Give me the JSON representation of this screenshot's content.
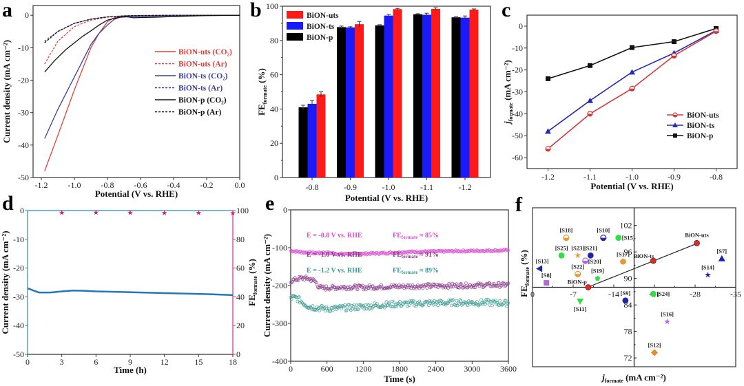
{
  "figure": {
    "panel_labels": [
      "a",
      "b",
      "c",
      "d",
      "e",
      "f"
    ]
  },
  "chart_data": [
    {
      "id": "a",
      "type": "line",
      "xlabel": "Potential (V vs. RHE)",
      "ylabel": "Current density (mA cm⁻²)",
      "xlim": [
        -1.25,
        0.0
      ],
      "ylim": [
        -50,
        3
      ],
      "xticks": [
        -1.2,
        -1.0,
        -0.8,
        -0.6,
        -0.4,
        -0.2,
        0.0
      ],
      "xtick_labels": [
        "-1.2",
        "-1.0",
        "-0.8",
        "-0.6",
        "-0.4",
        "-0.2",
        "0.0"
      ],
      "yticks": [
        0,
        -10,
        -20,
        -30,
        -40,
        -50
      ],
      "ytick_labels": [
        "0",
        "-10",
        "-20",
        "-30",
        "-40",
        "-50"
      ],
      "legend_position": "center-right",
      "series": [
        {
          "name": "BiON-uts (CO₂)",
          "color": "#e0403a",
          "dash": "solid",
          "x": [
            -1.18,
            -1.1,
            -1.0,
            -0.9,
            -0.85,
            -0.8,
            -0.76,
            -0.72,
            -0.7,
            -0.6,
            -0.4,
            -0.2,
            0.0
          ],
          "y": [
            -48,
            -37,
            -23,
            -10,
            -5.5,
            -2,
            -0.8,
            -0.3,
            -0.2,
            -0.1,
            -0.05,
            0,
            0
          ]
        },
        {
          "name": "BiON-uts (Ar)",
          "color": "#e0403a",
          "dash": "dashed",
          "x": [
            -1.18,
            -1.1,
            -1.0,
            -0.9,
            -0.8,
            -0.7,
            -0.6,
            -0.4,
            0.0
          ],
          "y": [
            -15,
            -8,
            -3.5,
            -1.5,
            -0.6,
            -0.2,
            -0.1,
            0,
            0
          ]
        },
        {
          "name": "BiON-ts (CO₂)",
          "color": "#3a3f9e",
          "dash": "solid",
          "x": [
            -1.18,
            -1.1,
            -1.0,
            -0.9,
            -0.85,
            -0.8,
            -0.76,
            -0.72,
            -0.68,
            -0.6,
            -0.4,
            -0.2,
            0.0
          ],
          "y": [
            -38,
            -29,
            -19,
            -9,
            -5.5,
            -3,
            -1.3,
            -0.5,
            -0.3,
            -0.5,
            -0.3,
            -0.1,
            0
          ]
        },
        {
          "name": "BiON-ts (Ar)",
          "color": "#3a3f9e",
          "dash": "dashed",
          "x": [
            -1.18,
            -1.1,
            -1.0,
            -0.9,
            -0.8,
            -0.7,
            -0.6,
            -0.4,
            0.0
          ],
          "y": [
            -8,
            -5,
            -2.5,
            -1.2,
            -0.5,
            -0.2,
            -0.1,
            0,
            0
          ]
        },
        {
          "name": "BiON-p (CO₂)",
          "color": "#111111",
          "dash": "solid",
          "x": [
            -1.18,
            -1.12,
            -1.05,
            -1.0,
            -0.95,
            -0.9,
            -0.85,
            -0.8,
            -0.76,
            -0.72,
            -0.68,
            -0.64,
            -0.6,
            -0.5,
            -0.4,
            -0.2,
            0.0
          ],
          "y": [
            -17.5,
            -14,
            -10.5,
            -8.5,
            -6.5,
            -4.8,
            -3,
            -1.5,
            -1,
            -0.6,
            -0.5,
            -0.8,
            -0.7,
            -0.6,
            -0.4,
            -0.1,
            0
          ]
        },
        {
          "name": "BiON-p (Ar)",
          "color": "#111111",
          "dash": "dashed",
          "x": [
            -1.18,
            -1.1,
            -1.0,
            -0.9,
            -0.8,
            -0.7,
            -0.6,
            -0.4,
            0.0
          ],
          "y": [
            -8.5,
            -5,
            -2.5,
            -1.2,
            -0.5,
            -0.2,
            -0.1,
            0,
            0
          ]
        }
      ]
    },
    {
      "id": "b",
      "type": "bar",
      "xlabel": "Potential (V vs. RHE)",
      "ylabel": "FE_formate (%)",
      "ylabel_main": "FE",
      "ylabel_sub": "formate",
      "ylabel_unit": " (%)",
      "categories": [
        "-0.8",
        "-0.9",
        "-1.0",
        "-1.1",
        "-1.2"
      ],
      "ylim": [
        0,
        100
      ],
      "yticks": [
        0,
        20,
        40,
        60,
        80,
        100
      ],
      "ytick_labels": [
        "0",
        "20",
        "40",
        "60",
        "80",
        "100"
      ],
      "legend_position": "top-left",
      "series": [
        {
          "name": "BiON-p",
          "color": "#000000",
          "values": [
            41,
            87.8,
            88.8,
            95.3,
            93.5
          ],
          "errors": [
            1.2,
            0.6,
            0.4,
            0.3,
            0.4
          ]
        },
        {
          "name": "BiON-ts",
          "color": "#1a1aff",
          "values": [
            43,
            87.6,
            94.5,
            95.0,
            93.3
          ],
          "errors": [
            2.0,
            0.4,
            0.7,
            0.9,
            1.0
          ]
        },
        {
          "name": "BiON-uts",
          "color": "#ff1a1a",
          "values": [
            48.5,
            89.5,
            98.3,
            98.4,
            98.0
          ],
          "errors": [
            1.5,
            1.6,
            0.4,
            0.7,
            0.4
          ]
        }
      ],
      "legend_order": [
        "BiON-uts",
        "BiON-ts",
        "BiON-p"
      ]
    },
    {
      "id": "c",
      "type": "line",
      "xlabel": "Potential (V vs. RHE)",
      "ylabel": "j_formate (mA cm⁻²)",
      "ylabel_main": "j",
      "ylabel_sub": "formate",
      "ylabel_unit": " (mA cm⁻²)",
      "x": [
        -1.2,
        -1.1,
        -1.0,
        -0.9,
        -0.8
      ],
      "xlim": [
        -1.25,
        -0.75
      ],
      "ylim": [
        -65,
        5
      ],
      "xtick_labels": [
        "-1.2",
        "-1.1",
        "-1.0",
        "-0.9",
        "-0.8"
      ],
      "yticks": [
        0,
        -10,
        -20,
        -30,
        -40,
        -50,
        -60
      ],
      "ytick_labels": [
        "0",
        "-10",
        "-20",
        "-30",
        "-40",
        "-50",
        "-60"
      ],
      "legend_position": "bottom-right",
      "series": [
        {
          "name": "BiON-uts",
          "color": "#d23a3a",
          "marker": "circle",
          "values": [
            -56,
            -40,
            -28.5,
            -13.5,
            -2.3
          ]
        },
        {
          "name": "BiON-ts",
          "color": "#2a2ab0",
          "marker": "triangle",
          "values": [
            -48,
            -34,
            -21,
            -12.3,
            -2.0
          ]
        },
        {
          "name": "BiON-p",
          "color": "#111111",
          "marker": "square",
          "values": [
            -24,
            -18,
            -9.8,
            -7.1,
            -1.1
          ]
        }
      ]
    },
    {
      "id": "d",
      "type": "line",
      "xlabel": "Time (h)",
      "ylabel": "Current density (mA cm⁻²)",
      "ylabel2": "FE_formate (%)",
      "ylabel2_main": "FE",
      "ylabel2_sub": "formate",
      "ylabel2_unit": " (%)",
      "xlim": [
        0,
        18
      ],
      "ylim": [
        -50,
        0
      ],
      "y2lim": [
        0,
        100
      ],
      "xticks": [
        0,
        3,
        6,
        9,
        12,
        15,
        18
      ],
      "xtick_labels": [
        "0",
        "3",
        "6",
        "9",
        "12",
        "15",
        "18"
      ],
      "yticks": [
        0,
        -10,
        -20,
        -30,
        -40,
        -50
      ],
      "ytick_labels": [
        "0",
        "-10",
        "-20",
        "-30",
        "-40",
        "-50"
      ],
      "y2ticks": [
        0,
        20,
        40,
        60,
        80,
        100
      ],
      "y2tick_labels": [
        "0",
        "20",
        "40",
        "60",
        "80",
        "100"
      ],
      "left_axis_color": "#2f86c6",
      "right_axis_color": "#d0308a",
      "series": [
        {
          "name": "Current density",
          "axis": "left",
          "color": "#2277bb",
          "x": [
            0,
            0.5,
            1,
            2,
            3,
            4,
            5,
            6,
            8,
            10,
            12,
            14,
            16,
            18
          ],
          "y": [
            -27,
            -27.8,
            -28.5,
            -28.5,
            -28.1,
            -27.8,
            -27.9,
            -28.1,
            -28.3,
            -28.5,
            -28.7,
            -28.9,
            -29.1,
            -29.4
          ]
        },
        {
          "name": "FE_formate",
          "axis": "right",
          "color": "#cc2277",
          "marker": "star",
          "x": [
            3,
            6,
            9,
            12,
            15,
            18
          ],
          "y": [
            98.5,
            98.6,
            98.5,
            98.3,
            98.4,
            98.2
          ]
        }
      ]
    },
    {
      "id": "e",
      "type": "scatter",
      "xlabel": "Time (s)",
      "ylabel": "Current density (mA cm⁻²)",
      "xlim": [
        0,
        3600
      ],
      "ylim": [
        -400,
        0
      ],
      "xticks": [
        0,
        600,
        1200,
        1800,
        2400,
        3000,
        3600
      ],
      "xtick_labels": [
        "0",
        "600",
        "1200",
        "1800",
        "2400",
        "3000",
        "3600"
      ],
      "yticks": [
        0,
        -100,
        -200,
        -300,
        -400
      ],
      "ytick_labels": [
        "0",
        "-100",
        "-200",
        "-300",
        "-400"
      ],
      "series": [
        {
          "name": "E = -0.8 V vs. RHE",
          "fe_label": "FE_formate ≈ 85%",
          "fe_value": "≈ 85%",
          "color": "#d94fd2",
          "x": [
            0,
            200,
            400,
            600,
            800,
            1000,
            1200,
            1400,
            1600,
            1800,
            2000,
            2400,
            2800,
            3200,
            3600
          ],
          "y": [
            -108,
            -112,
            -114,
            -113,
            -117,
            -116,
            -116,
            -115,
            -114,
            -112,
            -111,
            -110,
            -109,
            -108,
            -107
          ]
        },
        {
          "name": "E = -1.0 V vs. RHE",
          "fe_label": "FE_formate ≈ 91%",
          "fe_value": "≈ 91%",
          "color": "#8a3a8a",
          "x": [
            0,
            100,
            200,
            300,
            400,
            450,
            500,
            600,
            800,
            1000,
            1200,
            1600,
            2000,
            2400,
            2800,
            3200,
            3600
          ],
          "y": [
            -188,
            -183,
            -180,
            -182,
            -188,
            -200,
            -207,
            -206,
            -205,
            -204,
            -205,
            -203,
            -202,
            -201,
            -200,
            -199,
            -198
          ]
        },
        {
          "name": "E = -1.2 V vs. RHE",
          "fe_label": "FE_formate ≈ 89%",
          "fe_value": "≈ 89%",
          "color": "#3a9a8f",
          "x": [
            0,
            100,
            200,
            300,
            400,
            500,
            600,
            800,
            1000,
            1200,
            1600,
            2000,
            2400,
            2800,
            3200,
            3600
          ],
          "y": [
            -232,
            -233,
            -245,
            -255,
            -258,
            -260,
            -262,
            -260,
            -258,
            -256,
            -250,
            -248,
            -246,
            -245,
            -245,
            -247
          ]
        }
      ]
    },
    {
      "id": "f",
      "type": "scatter",
      "xlabel": "j_formate (mA cm⁻²)",
      "xlabel_main": "j",
      "xlabel_sub": "formate",
      "xlabel_unit": " (mA cm⁻²)",
      "ylabel": "FE_formate (%)",
      "ylabel_main": "FE",
      "ylabel_sub": "formate",
      "ylabel_unit": " (%)",
      "xlim": [
        0,
        -35
      ],
      "ylim": [
        70,
        106
      ],
      "x_axis_crosses_at_y": 88,
      "y_axis_crosses_at_x": -17.5,
      "xticks": [
        0,
        -7,
        -14,
        -21,
        -28,
        -35
      ],
      "xtick_labels": [
        "0",
        "-7",
        "-14",
        "-21",
        "-28",
        "-35"
      ],
      "yticks": [
        72,
        78,
        84,
        90,
        96,
        102
      ],
      "ytick_labels": [
        "72",
        "78",
        "84",
        "90",
        "96",
        "102"
      ],
      "trend_line": {
        "x": [
          -9.5,
          -28.5
        ],
        "y": [
          88,
          98
        ]
      },
      "points": [
        {
          "label": "BiON-uts",
          "x": -28.3,
          "y": 98.0,
          "color": "#d32f2f",
          "marker": "sphere"
        },
        {
          "label": "BiON-ts",
          "x": -20.8,
          "y": 94.0,
          "color": "#d32f2f",
          "marker": "sphere"
        },
        {
          "label": "BiON-p",
          "x": -9.6,
          "y": 88.0,
          "color": "#d32f2f",
          "marker": "sphere"
        },
        {
          "label": "[S18]",
          "x": -5.8,
          "y": 99.2,
          "color": "#e39a3b",
          "marker": "half-circle"
        },
        {
          "label": "[S10]",
          "x": -12.2,
          "y": 99.2,
          "color": "#2a2aa0",
          "marker": "half-circle"
        },
        {
          "label": "[S15]",
          "x": -14.8,
          "y": 99.2,
          "color": "#33dd44",
          "marker": "circle"
        },
        {
          "label": "[S25]",
          "x": -5.0,
          "y": 95.2,
          "color": "#33dd44",
          "marker": "circle"
        },
        {
          "label": "[S23]",
          "x": -7.8,
          "y": 95.2,
          "color": "#e39a3b",
          "marker": "star"
        },
        {
          "label": "[S21]",
          "x": -10.0,
          "y": 95.2,
          "color": "#2222aa",
          "marker": "circle"
        },
        {
          "label": "[S20]",
          "x": -9.1,
          "y": 94.0,
          "color": "#b266e0",
          "marker": "half-circle"
        },
        {
          "label": "[S17]",
          "x": -15.6,
          "y": 93.8,
          "color": "#e39a3b",
          "marker": "circle"
        },
        {
          "label": "[S13]",
          "x": -1.2,
          "y": 92.2,
          "color": "#2222aa",
          "marker": "triangle-left"
        },
        {
          "label": "[S22]",
          "x": -7.8,
          "y": 91.0,
          "color": "#e39a3b",
          "marker": "half-circle"
        },
        {
          "label": "[S19]",
          "x": -11.2,
          "y": 90.0,
          "color": "#33dd44",
          "marker": "pentagon"
        },
        {
          "label": "[S8]",
          "x": -2.4,
          "y": 89.0,
          "color": "#b266e0",
          "marker": "square"
        },
        {
          "label": "[S7]",
          "x": -32.6,
          "y": 94.5,
          "color": "#2222aa",
          "marker": "triangle"
        },
        {
          "label": "[S14]",
          "x": -30.2,
          "y": 90.8,
          "color": "#2222aa",
          "marker": "star"
        },
        {
          "label": "[S9]",
          "x": -16.0,
          "y": 85.0,
          "color": "#2222aa",
          "marker": "circle"
        },
        {
          "label": "[S24]",
          "x": -20.8,
          "y": 86.5,
          "color": "#33dd44",
          "marker": "circle"
        },
        {
          "label": "[S11]",
          "x": -8.2,
          "y": 84.8,
          "color": "#33dd44",
          "marker": "triangle-down"
        },
        {
          "label": "[S16]",
          "x": -23.2,
          "y": 80.2,
          "color": "#b266e0",
          "marker": "star"
        },
        {
          "label": "[S12]",
          "x": -21.0,
          "y": 73.2,
          "color": "#e38a2b",
          "marker": "diamond"
        }
      ]
    }
  ]
}
